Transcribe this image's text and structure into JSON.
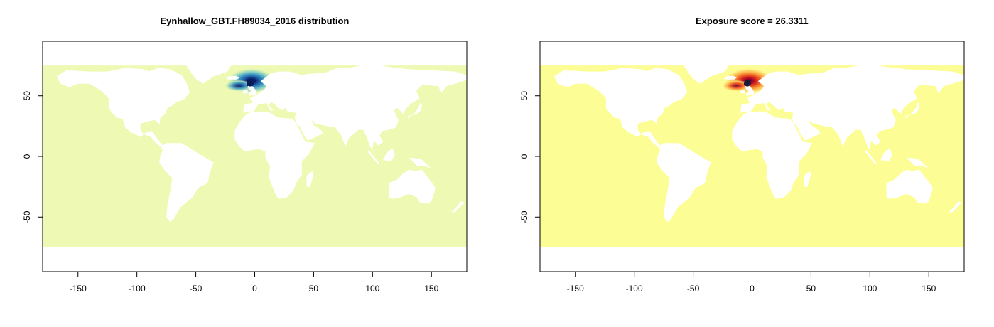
{
  "panels": [
    {
      "title": "Eynhallow_GBT.FH89034_2016 distribution",
      "colors": {
        "ocean": "#eef9b4",
        "land": "#ffffff",
        "ramp": [
          "#eef9b4",
          "#c8eab4",
          "#7cc8c4",
          "#3a94c0",
          "#1d5fa6",
          "#0b1f6b",
          "#081d58"
        ]
      }
    },
    {
      "title": "Exposure score = 26.3311",
      "colors": {
        "ocean": "#fdfd96",
        "land": "#ffffff",
        "ramp": [
          "#fdfd96",
          "#fde074",
          "#fdb04a",
          "#f36d27",
          "#d7301f",
          "#a50026",
          "#1a1a3a"
        ]
      }
    }
  ],
  "axes": {
    "xlim": [
      -180,
      180
    ],
    "ylim": [
      -95,
      95
    ],
    "x_ticks": [
      -150,
      -100,
      -50,
      0,
      50,
      100,
      150
    ],
    "y_ticks": [
      -50,
      0,
      50
    ]
  },
  "data_extent": {
    "lat_min": -75,
    "lat_max": 75
  },
  "hotspot": {
    "lon": -4,
    "lat": 60
  }
}
